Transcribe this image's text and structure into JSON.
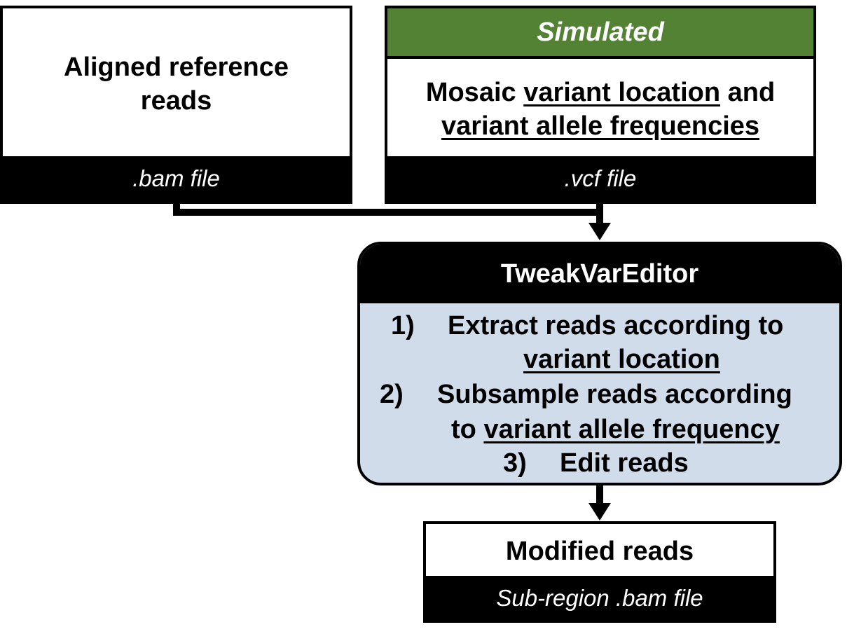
{
  "input_bam": {
    "line1": "Aligned reference",
    "line2": "reads",
    "footer": ".bam file"
  },
  "input_vcf": {
    "header": "Simulated",
    "line1_prefix": "Mosaic ",
    "line1_underlined": "variant location",
    "line1_suffix": " and",
    "line2_underlined": "variant allele frequencies",
    "footer": ".vcf file"
  },
  "tool": {
    "title": "TweakVarEditor",
    "step1_num": "1)",
    "step1_text": "Extract reads according to",
    "step1_underlined": "variant location",
    "step2_num": "2)",
    "step2_text": "Subsample reads according",
    "step2_prefix": "to ",
    "step2_underlined": "variant allele frequency",
    "step3_num": "3)",
    "step3_text": "Edit reads"
  },
  "output": {
    "title": "Modified reads",
    "footer": "Sub-region .bam file"
  },
  "colors": {
    "simulated_header": "#548235",
    "tool_body": "#d1dcea",
    "dark": "#000000"
  }
}
